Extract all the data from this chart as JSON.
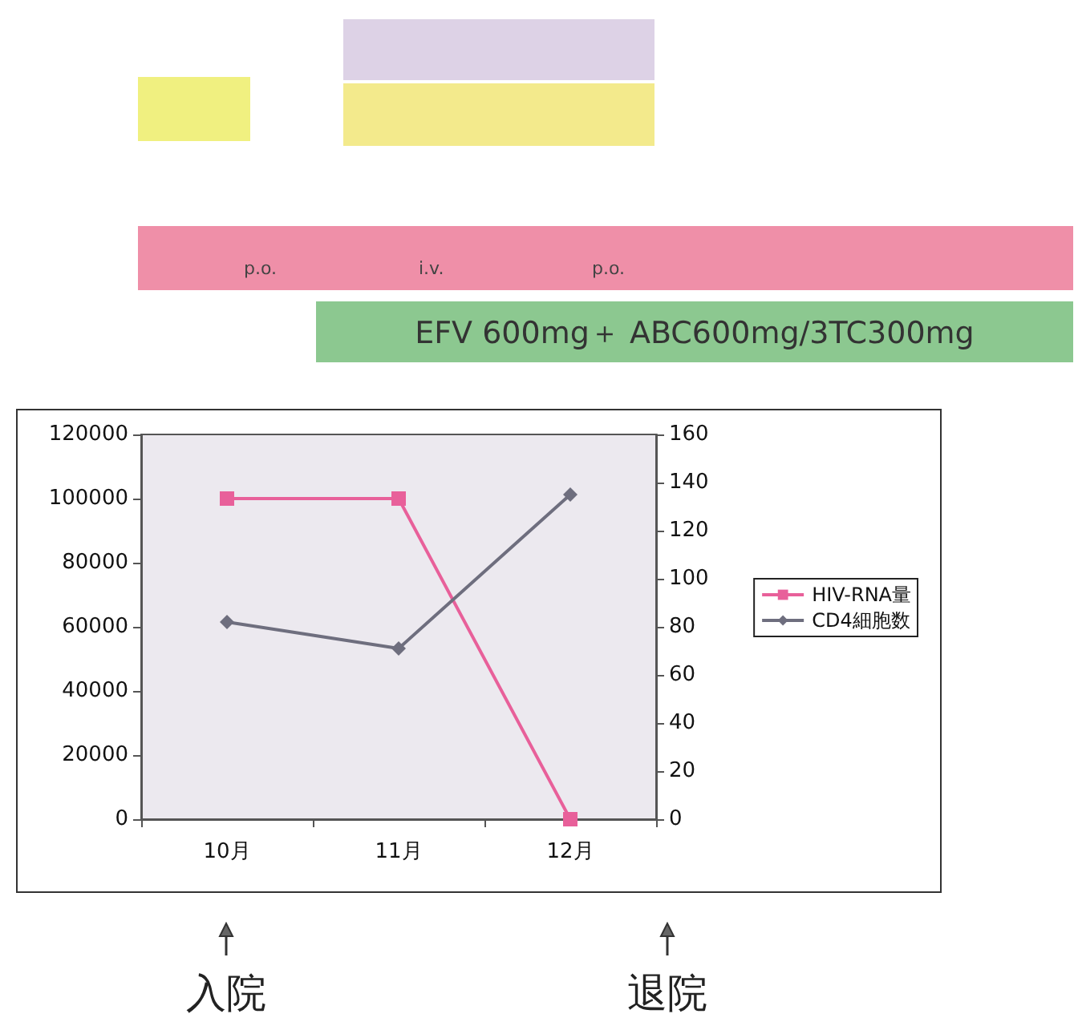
{
  "chart_data": {
    "type": "line",
    "categories": [
      "10月",
      "11月",
      "12月"
    ],
    "series": [
      {
        "name": "HIV-RNA量",
        "color": "#e8609a",
        "marker": "square",
        "values": [
          100000,
          100000,
          0
        ]
      },
      {
        "name": "CD4細胞数",
        "color": "#6e6e7e",
        "marker": "diamond",
        "axis": "y2",
        "values": [
          82,
          71,
          135
        ]
      }
    ],
    "ylim": [
      0,
      120000
    ],
    "yticks": [
      0,
      20000,
      40000,
      60000,
      80000,
      100000,
      120000
    ],
    "y2lim": [
      0,
      160
    ],
    "y2ticks": [
      0,
      20,
      40,
      60,
      80,
      100,
      120,
      140,
      160
    ],
    "grid": false,
    "legend": "right",
    "line_style": "solid",
    "annotations": [
      "p.o.",
      "i.v.",
      "p.o.",
      "EFV 600mg＋ ABC600mg/3TC300mg",
      "入院",
      "退院"
    ]
  }
}
